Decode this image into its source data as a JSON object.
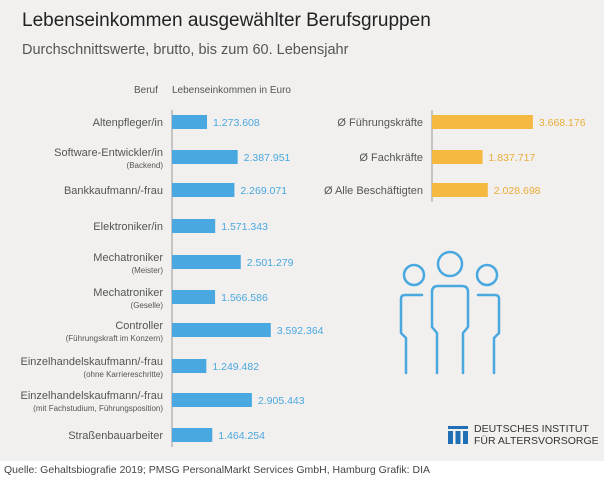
{
  "title": "Lebenseinkommen ausgewählter Berufsgruppen",
  "subtitle": "Durchschnittswerte, brutto, bis zum 60. Lebensjahr",
  "chart_data": [
    {
      "type": "bar",
      "orientation": "horizontal",
      "header_category": "Beruf",
      "header_value": "Lebenseinkommen in Euro",
      "color": "#4aa8e0",
      "categories": [
        {
          "label": "Altenpfleger/in",
          "note": ""
        },
        {
          "label": "Software-Entwickler/in",
          "note": "(Backend)"
        },
        {
          "label": "Bankkaufmann/-frau",
          "note": ""
        },
        {
          "label": "Elektroniker/in",
          "note": ""
        },
        {
          "label": "Mechatroniker",
          "note": "(Meister)"
        },
        {
          "label": "Mechatroniker",
          "note": "(Geselle)"
        },
        {
          "label": "Controller",
          "note": "(Führungskraft im Konzern)"
        },
        {
          "label": "Einzelhandelskaufmann/-frau",
          "note": "(ohne Karriereschritte)"
        },
        {
          "label": "Einzelhandelskaufmann/-frau",
          "note": "(mit Fachstudium, Führungsposition)"
        },
        {
          "label": "Straßenbauarbeiter",
          "note": ""
        }
      ],
      "values": [
        1273608,
        2387951,
        2269071,
        1571343,
        2501279,
        1566586,
        3592364,
        1249482,
        2905443,
        1464254
      ],
      "value_labels": [
        "1.273.608",
        "2.387.951",
        "2.269.071",
        "1.571.343",
        "2.501.279",
        "1.566.586",
        "3.592.364",
        "1.249.482",
        "2.905.443",
        "1.464.254"
      ]
    },
    {
      "type": "bar",
      "orientation": "horizontal",
      "color": "#f5b942",
      "categories": [
        {
          "label": "Ø Führungskräfte"
        },
        {
          "label": "Ø Fachkräfte"
        },
        {
          "label": "Ø Alle Beschäftigten"
        }
      ],
      "values": [
        3668176,
        1837717,
        2028698
      ],
      "value_labels": [
        "3.668.176",
        "1.837.717",
        "2.028.698"
      ]
    }
  ],
  "logo": {
    "line1": "DEUTSCHES INSTITUT",
    "line2": "FÜR ALTERSVORSORGE"
  },
  "footer": "Quelle: Gehaltsbiografie 2019; PMSG PersonalMarkt Services GmbH, Hamburg  Grafik: DIA"
}
